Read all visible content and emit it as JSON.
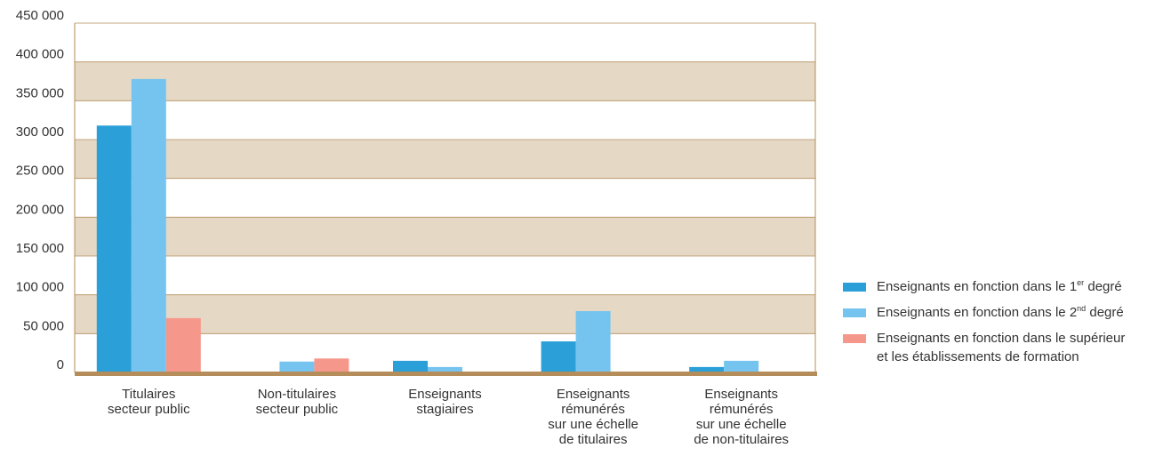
{
  "chart_data": {
    "type": "bar",
    "categories": [
      [
        "Titulaires",
        "secteur public"
      ],
      [
        "Non-titulaires",
        "secteur public"
      ],
      [
        "Enseignants",
        "stagiaires"
      ],
      [
        "Enseignants",
        "rémunérés",
        "sur une échelle",
        "de titulaires"
      ],
      [
        "Enseignants",
        "rémunérés",
        "sur une échelle",
        "de non-titulaires"
      ]
    ],
    "series": [
      {
        "name": "Enseignants en fonction dans le 1er degré",
        "name_parts": [
          "Enseignants en fonction dans le 1",
          "er",
          " degré"
        ],
        "color": "#2a9fd8",
        "values": [
          318000,
          0,
          15000,
          40000,
          7000
        ]
      },
      {
        "name": "Enseignants en fonction dans le 2nd degré",
        "name_parts": [
          "Enseignants en fonction dans le 2",
          "nd",
          " degré"
        ],
        "color": "#75c4ef",
        "values": [
          378000,
          14000,
          7000,
          79000,
          15000
        ]
      },
      {
        "name": "Enseignants en fonction dans le supérieur et les établissements de formation",
        "name_lines": [
          "Enseignants en fonction dans le supérieur",
          "et les établissements de formation"
        ],
        "color": "#f5978a",
        "values": [
          70000,
          18000,
          0,
          0,
          0
        ]
      }
    ],
    "y_ticks": [
      "0",
      "50 000",
      "100 000",
      "150 000",
      "200 000",
      "250 000",
      "300 000",
      "350 000",
      "400 000",
      "450 000"
    ],
    "ylim": [
      0,
      450000
    ],
    "ytick_step": 50000,
    "band_colors": [
      "#e5d9c6",
      "#ffffff"
    ],
    "axis_color": "#b48d5a",
    "title": "",
    "xlabel": "",
    "ylabel": "",
    "grid": true,
    "legend_position": "right"
  }
}
